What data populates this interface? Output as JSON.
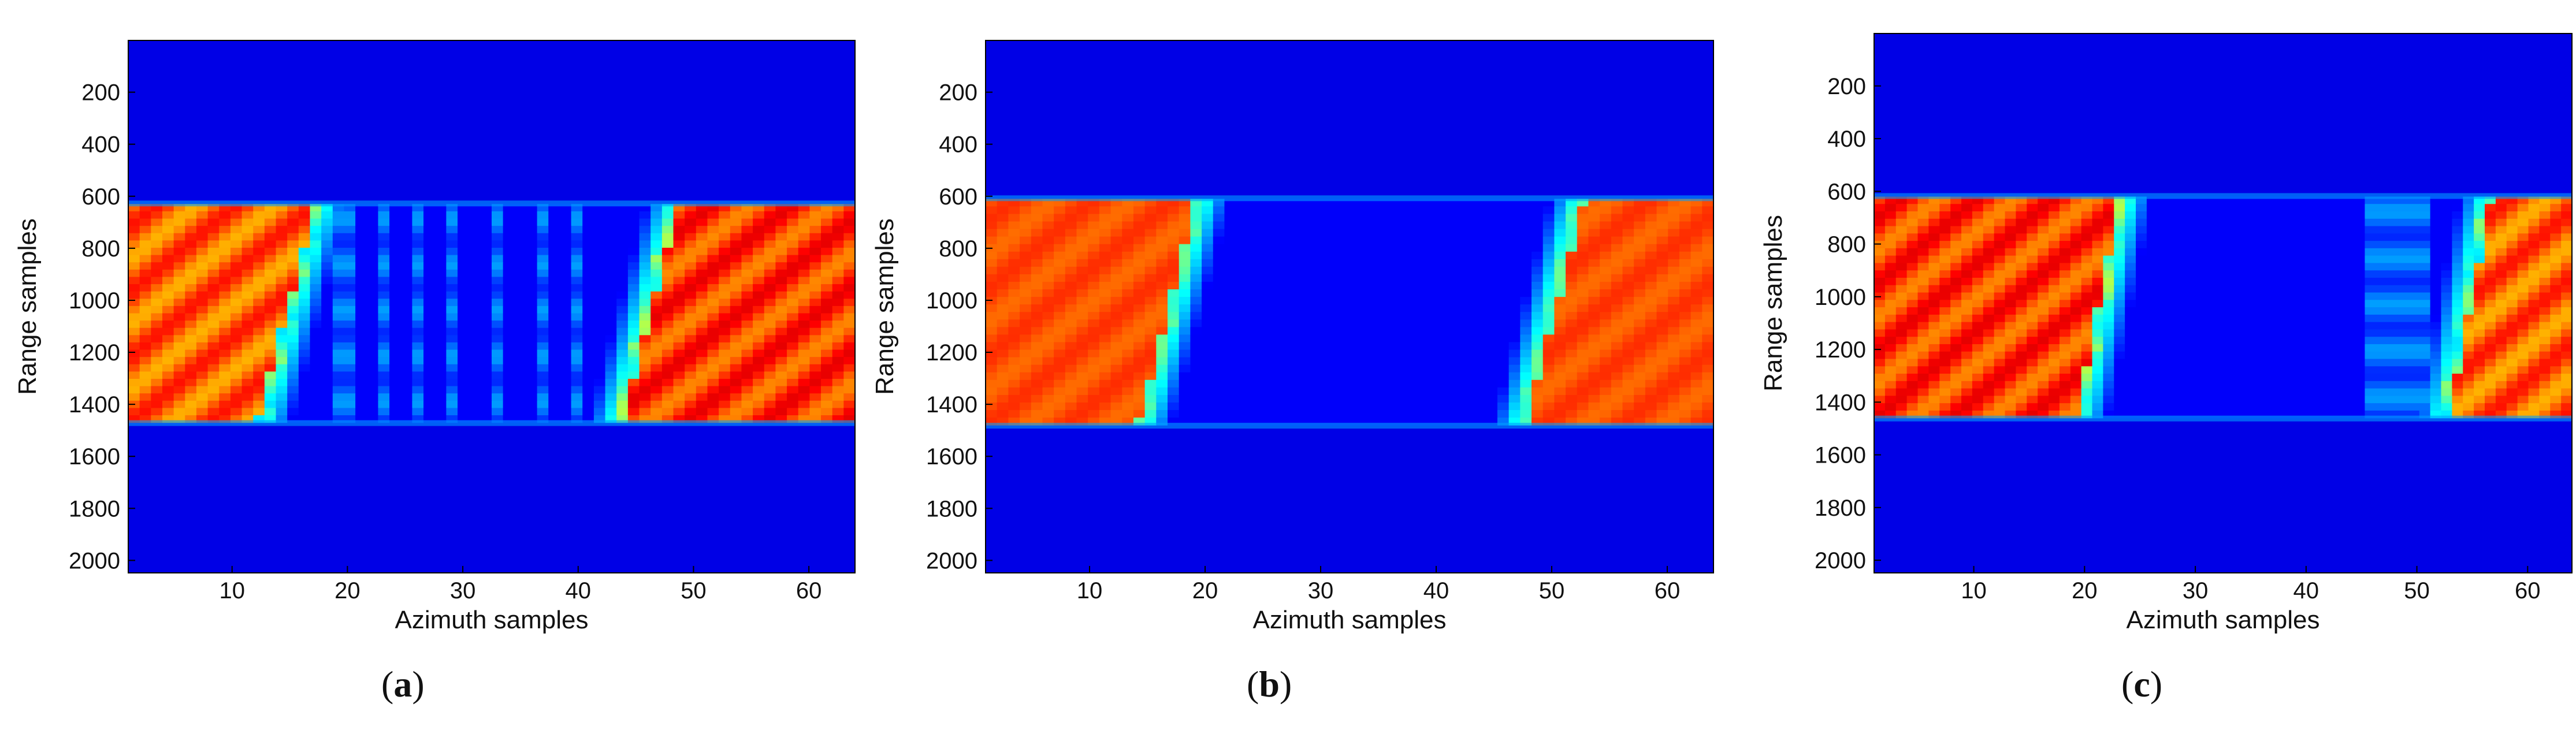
{
  "colors": {
    "background_low": "#00008f",
    "band_mid": "#00b4ff",
    "band_high": "#c8ff3c",
    "peak": "#ff3c00"
  },
  "chart_data": [
    {
      "type": "heatmap",
      "panel_label": "a",
      "title": "",
      "xlabel": "Azimuth samples",
      "ylabel": "Range samples",
      "xlim": [
        1,
        64
      ],
      "ylim": [
        2048,
        1
      ],
      "y_reversed": true,
      "x_ticks": [
        10,
        20,
        30,
        40,
        50,
        60
      ],
      "y_ticks": [
        200,
        400,
        600,
        800,
        1000,
        1200,
        1400,
        1600,
        1800,
        2000
      ],
      "colormap": "jet",
      "band_range": [
        630,
        1470
      ],
      "regions": [
        {
          "name": "left-block",
          "x_start_top": 1,
          "x_end_top": 18,
          "x_start_bottom": 1,
          "x_end_bottom": 13,
          "intensity": 0.78
        },
        {
          "name": "right-block",
          "x_start_top": 48,
          "x_end_top": 64,
          "x_start_bottom": 43,
          "x_end_bottom": 64,
          "intensity": 0.82
        }
      ],
      "weak_stripes": [
        20,
        23,
        26,
        29,
        33,
        37,
        40
      ]
    },
    {
      "type": "heatmap",
      "panel_label": "b",
      "title": "",
      "xlabel": "Azimuth samples",
      "ylabel": "Range samples",
      "xlim": [
        1,
        64
      ],
      "ylim": [
        2048,
        1
      ],
      "y_reversed": true,
      "x_ticks": [
        10,
        20,
        30,
        40,
        50,
        60
      ],
      "y_ticks": [
        200,
        400,
        600,
        800,
        1000,
        1200,
        1400,
        1600,
        1800,
        2000
      ],
      "colormap": "jet",
      "band_range": [
        610,
        1480
      ],
      "regions": [
        {
          "name": "left-block",
          "x_start_top": 1,
          "x_end_top": 20,
          "x_start_bottom": 1,
          "x_end_bottom": 15,
          "intensity": 0.8
        },
        {
          "name": "right-block",
          "x_start_top": 52,
          "x_end_top": 64,
          "x_start_bottom": 47,
          "x_end_bottom": 64,
          "intensity": 0.8
        }
      ],
      "weak_stripes": []
    },
    {
      "type": "heatmap",
      "panel_label": "c",
      "title": "",
      "xlabel": "Azimuth samples",
      "ylabel": "Range samples",
      "xlim": [
        1,
        64
      ],
      "ylim": [
        2048,
        1
      ],
      "y_reversed": true,
      "x_ticks": [
        10,
        20,
        30,
        40,
        50,
        60
      ],
      "y_ticks": [
        200,
        400,
        600,
        800,
        1000,
        1200,
        1400,
        1600,
        1800,
        2000
      ],
      "colormap": "jet",
      "band_range": [
        620,
        1460
      ],
      "regions": [
        {
          "name": "left-block",
          "x_start_top": 1,
          "x_end_top": 24,
          "x_start_bottom": 1,
          "x_end_bottom": 20,
          "intensity": 0.82
        },
        {
          "name": "right-block",
          "x_start_top": 56,
          "x_end_top": 64,
          "x_start_bottom": 52,
          "x_end_bottom": 64,
          "intensity": 0.78
        }
      ],
      "weak_stripes": [
        46,
        48,
        50
      ]
    }
  ]
}
